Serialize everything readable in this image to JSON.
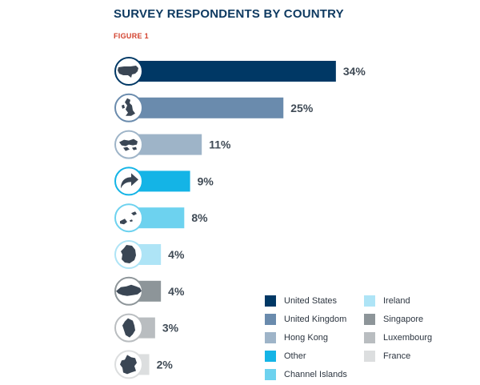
{
  "header": {
    "title": "SURVEY RESPONDENTS BY COUNTRY",
    "figure_label": "FIGURE 1"
  },
  "chart_data": {
    "type": "bar",
    "orientation": "horizontal",
    "title": "SURVEY RESPONDENTS BY COUNTRY",
    "categories": [
      "United States",
      "United Kingdom",
      "Hong Kong",
      "Other",
      "Channel Islands",
      "Ireland",
      "Singapore",
      "Luxembourg",
      "France"
    ],
    "values": [
      34,
      25,
      11,
      9,
      8,
      4,
      4,
      3,
      2
    ],
    "value_labels": [
      "34%",
      "25%",
      "11%",
      "9%",
      "8%",
      "4%",
      "4%",
      "3%",
      "2%"
    ],
    "unit": "%",
    "colors": [
      "#003865",
      "#6a8bad",
      "#9eb4c8",
      "#14b4e6",
      "#6dd2ef",
      "#aee4f6",
      "#8d9599",
      "#b9bdc0",
      "#dcdedf"
    ],
    "icons": [
      "usa-map-icon",
      "uk-map-icon",
      "hong-kong-map-icon",
      "arrow-curved-icon",
      "channel-islands-map-icon",
      "ireland-map-icon",
      "singapore-map-icon",
      "luxembourg-map-icon",
      "france-map-icon"
    ],
    "grid": false,
    "legend_position": "bottom-right"
  },
  "legend": {
    "columns": [
      [
        "United States",
        "United Kingdom",
        "Hong Kong",
        "Other",
        "Channel Islands"
      ],
      [
        "Ireland",
        "Singapore",
        "Luxembourg",
        "France"
      ]
    ],
    "colors": [
      [
        "#003865",
        "#6a8bad",
        "#9eb4c8",
        "#14b4e6",
        "#6dd2ef"
      ],
      [
        "#aee4f6",
        "#8d9599",
        "#b9bdc0",
        "#dcdedf"
      ]
    ]
  }
}
